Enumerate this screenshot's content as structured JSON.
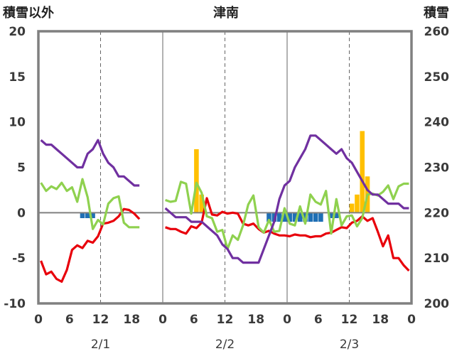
{
  "chart_data": {
    "type": "bar+line",
    "title": "津南",
    "ylabel_left": "積雪以外",
    "ylabel_right": "積雪",
    "ylim_left": [
      -10,
      20
    ],
    "yticks_left": [
      "20",
      "15",
      "10",
      "5",
      "0",
      "-5",
      "-10"
    ],
    "ylim_right": [
      200,
      260
    ],
    "yticks_right": [
      "260",
      "250",
      "240",
      "230",
      "220",
      "210",
      "200"
    ],
    "xticks": [
      "0",
      "6",
      "12",
      "18",
      "0",
      "6",
      "12",
      "18",
      "0",
      "6",
      "12",
      "18",
      "0"
    ],
    "xdates": [
      "2/1",
      "2/2",
      "2/3"
    ],
    "x_range_hours": [
      0,
      72
    ],
    "colors": {
      "temperature": "#e8000b",
      "sunshine": "#8fd14f",
      "snow_depth": "#7030a0",
      "snowfall": "#ffc000",
      "snow_decrease": "#1f6fb5",
      "axis": "#808080"
    },
    "series": [
      {
        "type": "line",
        "axis": "left",
        "color_key": "temperature",
        "segments": [
          {
            "x": [
              0,
              1,
              2,
              3,
              4,
              5,
              6,
              7,
              8,
              9,
              10,
              11,
              12,
              13,
              14,
              15,
              16,
              17,
              18,
              19
            ],
            "y": [
              -5.3,
              -6.8,
              -6.5,
              -7.3,
              -7.6,
              -6.3,
              -4.1,
              -3.6,
              -3.9,
              -3.1,
              -3.3,
              -2.6,
              -1.2,
              -1.1,
              -0.9,
              -0.4,
              0.4,
              0.3,
              -0.1,
              -0.7
            ]
          },
          {
            "x": [
              24,
              25,
              26,
              27,
              28,
              29,
              30,
              31,
              32,
              33,
              34,
              35,
              36,
              37,
              38,
              39,
              40,
              41,
              42,
              43,
              44,
              45,
              46,
              47,
              48,
              49,
              50,
              51,
              52,
              53,
              54,
              55,
              56,
              57,
              58,
              59,
              60,
              61,
              62,
              63,
              64,
              65,
              66,
              67,
              68,
              69,
              70,
              71
            ],
            "y": [
              -1.6,
              -1.8,
              -1.8,
              -2.1,
              -2.3,
              -1.5,
              -1.7,
              -1.1,
              1.6,
              -0.2,
              -0.3,
              0.1,
              -0.1,
              0.0,
              -0.1,
              -1.2,
              -1.4,
              -1.2,
              -1.8,
              -2.2,
              -2.0,
              -2.3,
              -2.5,
              -2.5,
              -2.6,
              -2.4,
              -2.5,
              -2.5,
              -2.7,
              -2.6,
              -2.6,
              -2.3,
              -2.2,
              -1.9,
              -1.6,
              -1.7,
              -1.1,
              -0.9,
              -0.4,
              -0.9,
              -0.6,
              -2.1,
              -3.7,
              -2.5,
              -5.0,
              -5.0,
              -5.8,
              -6.4
            ]
          }
        ]
      },
      {
        "type": "line",
        "axis": "left",
        "color_key": "sunshine",
        "segments": [
          {
            "x": [
              0,
              1,
              2,
              3,
              4,
              5,
              6,
              7,
              8,
              9,
              10,
              11,
              12,
              13,
              14,
              15,
              16,
              17,
              18,
              19
            ],
            "y": [
              3.3,
              2.4,
              2.9,
              2.6,
              3.3,
              2.4,
              2.8,
              1.2,
              3.7,
              1.7,
              -1.8,
              -0.8,
              -1.3,
              1.0,
              1.6,
              1.8,
              -1.1,
              -1.6,
              -1.6,
              -1.6
            ]
          },
          {
            "x": [
              24,
              25,
              26,
              27,
              28,
              29,
              30,
              31,
              32,
              33,
              34,
              35,
              36,
              37,
              38,
              39,
              40,
              41,
              42,
              43,
              44,
              45,
              46,
              47,
              48,
              49,
              50,
              51,
              52,
              53,
              54,
              55,
              56,
              57,
              58,
              59,
              60,
              61,
              62,
              63,
              64,
              65,
              66,
              67,
              68,
              69,
              70,
              71
            ],
            "y": [
              1.4,
              1.2,
              1.3,
              3.4,
              3.2,
              -0.1,
              3.3,
              2.2,
              -0.4,
              -0.6,
              -2.1,
              -1.9,
              -4.0,
              -2.5,
              -3.0,
              -1.4,
              0.9,
              1.9,
              -1.6,
              -2.2,
              -0.8,
              -2.1,
              -2.0,
              0.5,
              -1.2,
              -1.4,
              0.7,
              -1.2,
              2.0,
              1.2,
              0.9,
              2.4,
              -2.3,
              1.5,
              -1.4,
              -0.4,
              -0.3,
              -1.5,
              -0.6,
              2.0,
              2.1,
              1.9,
              2.3,
              3.0,
              1.5,
              2.9,
              3.2,
              3.2
            ]
          }
        ]
      },
      {
        "type": "line",
        "axis": "right",
        "color_key": "snow_depth",
        "segments": [
          {
            "x": [
              0,
              1,
              2,
              3,
              4,
              5,
              6,
              7,
              8,
              9,
              10,
              11,
              12,
              13,
              14,
              15,
              16,
              17,
              18,
              19
            ],
            "y": [
              236,
              235,
              235,
              234,
              233,
              232,
              231,
              230,
              230,
              233,
              234,
              236,
              233,
              231,
              230,
              228,
              228,
              227,
              226,
              226
            ]
          },
          {
            "x": [
              24,
              25,
              26,
              27,
              28,
              29,
              30,
              31,
              32,
              33,
              34,
              35,
              36,
              37,
              38,
              39,
              40,
              41,
              42,
              43,
              44,
              45,
              46,
              47,
              48,
              49,
              50,
              51,
              52,
              53,
              54,
              55,
              56,
              57,
              58,
              59,
              60,
              61,
              62,
              63,
              64,
              65,
              66,
              67,
              68,
              69,
              70,
              71
            ],
            "y": [
              221,
              220,
              219,
              219,
              219,
              218,
              218,
              218,
              217,
              216,
              215,
              213,
              212,
              210,
              210,
              209,
              209,
              209,
              209,
              212,
              215,
              218,
              223,
              226,
              227,
              230,
              232,
              234,
              237,
              237,
              236,
              235,
              234,
              233,
              234,
              232,
              231,
              229,
              227,
              225,
              224,
              224,
              223,
              222,
              222,
              222,
              221,
              221
            ]
          }
        ]
      },
      {
        "type": "bar",
        "axis": "left",
        "color_key": "snowfall",
        "x": [
          30,
          31,
          60,
          61,
          62,
          63
        ],
        "y": [
          7.0,
          2.0,
          1.0,
          2.0,
          9.0,
          4.0
        ]
      },
      {
        "type": "bar",
        "axis": "left",
        "color_key": "snow_decrease",
        "x": [
          8,
          9,
          10,
          44,
          45,
          46,
          47,
          48,
          49,
          50,
          51,
          52,
          53,
          54,
          56,
          57
        ],
        "y": [
          -0.6,
          -0.6,
          -0.6,
          -1.0,
          -1.0,
          -1.0,
          -1.0,
          -1.0,
          -1.0,
          -1.0,
          -1.0,
          -1.0,
          -1.0,
          -1.0,
          -0.6,
          -0.6
        ]
      }
    ]
  }
}
